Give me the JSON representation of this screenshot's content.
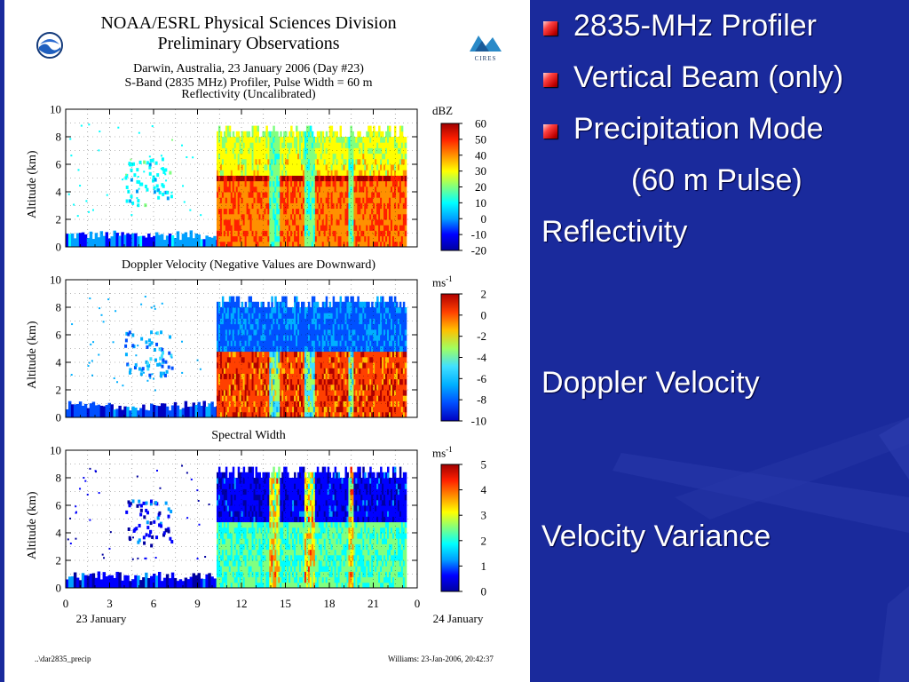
{
  "slide": {
    "bullets": [
      "2835-MHz Profiler",
      "Vertical Beam (only)",
      "Precipitation Mode"
    ],
    "sub_bullet": "(60 m Pulse)",
    "labels": [
      "Reflectivity",
      "Doppler Velocity",
      "Velocity Variance"
    ],
    "colors": {
      "background": "#1a2a9c",
      "bullet": "#e02020",
      "text": "#ffffff"
    }
  },
  "figure": {
    "header_line1": "NOAA/ESRL Physical Sciences Division",
    "header_line2": "Preliminary Observations",
    "subtitle_line1": "Darwin, Australia, 23 January 2006 (Day #23)",
    "subtitle_line2": "S-Band (2835 MHz) Profiler, Pulse Width = 60 m",
    "logo_left": "NOAA",
    "logo_right": "CIRES",
    "footer_left": "..\\dar2835_precip",
    "footer_right": "Williams: 23-Jan-2006, 20:42:37"
  },
  "chart_data": [
    {
      "type": "heatmap",
      "title": "Reflectivity (Uncalibrated)",
      "ylabel": "Altitude (km)",
      "ylim": [
        0,
        10
      ],
      "yticks": [
        "0",
        "2",
        "4",
        "6",
        "8",
        "10"
      ],
      "xlim": [
        0,
        24
      ],
      "colorbar_label": "dBZ",
      "colorbar_ticks": [
        "60",
        "50",
        "40",
        "30",
        "20",
        "10",
        "0",
        "-10",
        "-20"
      ]
    },
    {
      "type": "heatmap",
      "title": "Doppler Velocity (Negative Values are Downward)",
      "ylabel": "Altitude (km)",
      "ylim": [
        0,
        10
      ],
      "yticks": [
        "0",
        "2",
        "4",
        "6",
        "8",
        "10"
      ],
      "xlim": [
        0,
        24
      ],
      "colorbar_label": "ms",
      "colorbar_label_sup": "-1",
      "colorbar_ticks": [
        "2",
        "0",
        "-2",
        "-4",
        "-6",
        "-8",
        "-10"
      ]
    },
    {
      "type": "heatmap",
      "title": "Spectral Width",
      "ylabel": "Altitude (km)",
      "ylim": [
        0,
        10
      ],
      "yticks": [
        "0",
        "2",
        "4",
        "6",
        "8",
        "10"
      ],
      "xlim": [
        0,
        24
      ],
      "xticks": [
        "0",
        "3",
        "6",
        "9",
        "12",
        "15",
        "18",
        "21",
        "0"
      ],
      "xlabel_left": "23 January",
      "xlabel_right": "24 January",
      "colorbar_label": "ms",
      "colorbar_label_sup": "-1",
      "colorbar_ticks": [
        "5",
        "4",
        "3",
        "2",
        "1",
        "0"
      ]
    }
  ]
}
